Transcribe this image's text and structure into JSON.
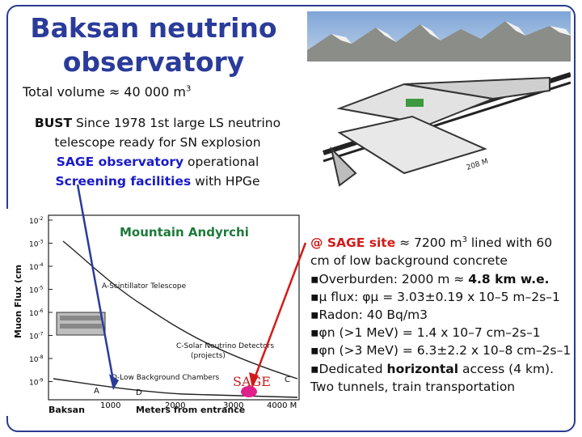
{
  "title_line1": "Baksan neutrino",
  "title_line2": "observatory",
  "volume": "Total volume ≈ 40 000 m",
  "volume_exp": "3",
  "bust": {
    "label": "BUST",
    "line1": " Since 1978 1st large LS neutrino",
    "line2": "telescope ready for SN explosion",
    "sage_label": "SAGE observatory",
    "sage_rest": " operational",
    "screen_label": "Screening facilities",
    "screen_rest": " with HPGe"
  },
  "photo": {
    "tunnel_length": "208 M"
  },
  "plot": {
    "title": "Mountain Andyrchi",
    "ylabel": "Muon Flux (cm",
    "xlabel": "Meters from entrance",
    "origin": "Baksan",
    "xticks": [
      "1000",
      "2000",
      "3000",
      "4000 M"
    ],
    "yticks": [
      "10",
      "10",
      "10",
      "10",
      "10",
      "10",
      "10",
      "10"
    ],
    "yexps": [
      "-2",
      "-3",
      "-4",
      "-5",
      "-6",
      "-7",
      "-8",
      "-9"
    ],
    "labels": {
      "scint": "A-Scintillator Telescope",
      "solar1": "C-Solar Neutrino Detectors",
      "solar2": "(projects)",
      "lowbg": "D-Low Background Chambers",
      "a": "A",
      "d": "D",
      "c": "C"
    }
  },
  "sage_marker": "SAGE",
  "info": {
    "l1a": "@ SAGE site",
    "l1b": " ≈ 7200 m",
    "l1c": " lined with 60",
    "l2": "cm of low background concrete",
    "l3a": "▪Overburden: 2000 m ≈ ",
    "l3b": "4.8 km w.e.",
    "l4": "▪μ flux:  φμ = 3.03±0.19 x 10–5 m–2s–1",
    "l5": "▪Radon:  40 Bq/m3",
    "l6": "▪φn (>1 MeV) = 1.4 x 10–7 cm–2s–1",
    "l7": "▪φn (>3 MeV) = 6.3±2.2 x 10–8 cm–2s–1",
    "l8a": "▪Dedicated ",
    "l8b": "horizontal",
    "l8c": " access (4 km).",
    "l9": "Two tunnels, train transportation"
  }
}
